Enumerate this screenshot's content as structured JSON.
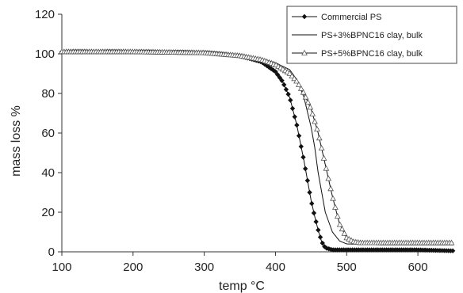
{
  "chart_data": {
    "type": "line",
    "xlabel": "temp °C",
    "ylabel": "mass loss %",
    "xlim": [
      100,
      650
    ],
    "ylim": [
      0,
      120
    ],
    "xticks": [
      100,
      200,
      300,
      400,
      500,
      600
    ],
    "yticks": [
      0,
      20,
      40,
      60,
      80,
      100,
      120
    ],
    "grid": false,
    "legend_position": "top-right",
    "series": [
      {
        "name": "Commercial PS",
        "marker": "diamond-filled",
        "color": "#111111",
        "points": [
          [
            100,
            101
          ],
          [
            200,
            101
          ],
          [
            300,
            100.6
          ],
          [
            350,
            99
          ],
          [
            380,
            96
          ],
          [
            400,
            91
          ],
          [
            410,
            86
          ],
          [
            420,
            78
          ],
          [
            430,
            64
          ],
          [
            440,
            46
          ],
          [
            450,
            26
          ],
          [
            455,
            18
          ],
          [
            460,
            11
          ],
          [
            465,
            5
          ],
          [
            470,
            2
          ],
          [
            480,
            1
          ],
          [
            500,
            1
          ],
          [
            550,
            1
          ],
          [
            600,
            1
          ],
          [
            650,
            0.5
          ]
        ]
      },
      {
        "name": "PS+3%BPNC16 clay, bulk",
        "marker": "none",
        "color": "#111111",
        "points": [
          [
            100,
            101
          ],
          [
            200,
            101
          ],
          [
            300,
            100.5
          ],
          [
            350,
            99
          ],
          [
            380,
            97.5
          ],
          [
            400,
            95.5
          ],
          [
            420,
            92
          ],
          [
            430,
            87
          ],
          [
            440,
            78
          ],
          [
            450,
            63
          ],
          [
            455,
            53
          ],
          [
            460,
            40
          ],
          [
            465,
            30
          ],
          [
            470,
            20
          ],
          [
            480,
            10
          ],
          [
            490,
            5.5
          ],
          [
            500,
            4
          ],
          [
            550,
            3.5
          ],
          [
            600,
            3.5
          ],
          [
            650,
            3.5
          ]
        ]
      },
      {
        "name": "PS+5%BPNC16 clay, bulk",
        "marker": "triangle-open",
        "color": "#111111",
        "points": [
          [
            100,
            101
          ],
          [
            200,
            101
          ],
          [
            300,
            100.5
          ],
          [
            350,
            99
          ],
          [
            380,
            97
          ],
          [
            400,
            94.5
          ],
          [
            420,
            90
          ],
          [
            430,
            86
          ],
          [
            440,
            80
          ],
          [
            450,
            72
          ],
          [
            460,
            60
          ],
          [
            470,
            44
          ],
          [
            480,
            28
          ],
          [
            490,
            14
          ],
          [
            500,
            7
          ],
          [
            510,
            5
          ],
          [
            520,
            4.5
          ],
          [
            550,
            4.5
          ],
          [
            600,
            4.5
          ],
          [
            650,
            4.5
          ]
        ]
      }
    ]
  }
}
